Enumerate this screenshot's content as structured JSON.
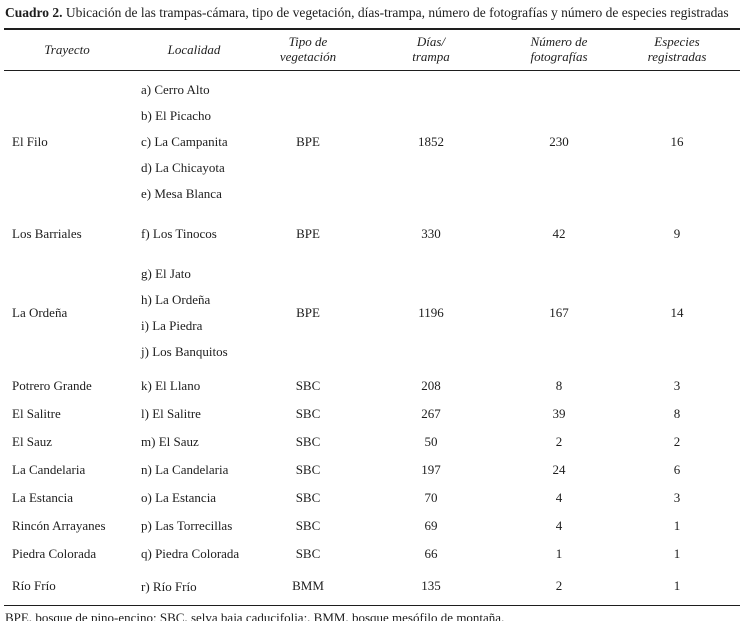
{
  "table": {
    "caption": {
      "label": "Cuadro 2.",
      "text": " Ubicación de las trampas-cámara, tipo de vegetación, días-trampa, número de fotografías y número de especies registradas"
    },
    "columns": [
      "Trayecto",
      "Localidad",
      "Tipo de\nvegetación",
      "Días/\ntrampa",
      "Número de\nfotografías",
      "Especies\nregistradas"
    ],
    "groups": [
      {
        "trayecto": "El Filo",
        "localidades": [
          "a) Cerro Alto",
          "b) El Picacho",
          "c) La Campanita",
          "d) La Chicayota",
          "e) Mesa Blanca"
        ],
        "vegetacion": "BPE",
        "dias_trampa": "1852",
        "num_fotografias": "230",
        "especies_registradas": "16"
      },
      {
        "trayecto": "Los Barriales",
        "localidades": [
          "f) Los Tinocos"
        ],
        "vegetacion": "BPE",
        "dias_trampa": "330",
        "num_fotografias": "42",
        "especies_registradas": "9"
      },
      {
        "trayecto": "La Ordeña",
        "localidades": [
          "g) El Jato",
          "h) La Ordeña",
          "i) La Piedra",
          "j) Los Banquitos"
        ],
        "vegetacion": "BPE",
        "dias_trampa": "1196",
        "num_fotografias": "167",
        "especies_registradas": "14"
      },
      {
        "trayecto": "Potrero Grande",
        "localidades": [
          "k) El Llano"
        ],
        "vegetacion": "SBC",
        "dias_trampa": "208",
        "num_fotografias": "8",
        "especies_registradas": "3"
      },
      {
        "trayecto": "El Salitre",
        "localidades": [
          "l) El Salitre"
        ],
        "vegetacion": "SBC",
        "dias_trampa": "267",
        "num_fotografias": "39",
        "especies_registradas": "8"
      },
      {
        "trayecto": "El Sauz",
        "localidades": [
          "m) El Sauz"
        ],
        "vegetacion": "SBC",
        "dias_trampa": "50",
        "num_fotografias": "2",
        "especies_registradas": "2"
      },
      {
        "trayecto": "La Candelaria",
        "localidades": [
          "n) La Candelaria"
        ],
        "vegetacion": "SBC",
        "dias_trampa": "197",
        "num_fotografias": "24",
        "especies_registradas": "6"
      },
      {
        "trayecto": "La Estancia",
        "localidades": [
          "o) La Estancia"
        ],
        "vegetacion": "SBC",
        "dias_trampa": "70",
        "num_fotografias": "4",
        "especies_registradas": "3"
      },
      {
        "trayecto": "Rincón Arrayanes",
        "localidades": [
          "p) Las Torrecillas"
        ],
        "vegetacion": "SBC",
        "dias_trampa": "69",
        "num_fotografias": "4",
        "especies_registradas": "1"
      },
      {
        "trayecto": "Piedra Colorada",
        "localidades": [
          "q) Piedra Colorada"
        ],
        "vegetacion": "SBC",
        "dias_trampa": "66",
        "num_fotografias": "1",
        "especies_registradas": "1"
      },
      {
        "trayecto": "Río Frío",
        "localidades": [
          "r) Río Frío"
        ],
        "vegetacion": "BMM",
        "dias_trampa": "135",
        "num_fotografias": "2",
        "especies_registradas": "1"
      }
    ],
    "footnote": "BPE, bosque de pino-encino; SBC, selva baja caducifolia;, BMM, bosque mesófilo de montaña.",
    "text_color": "#1d1d1d",
    "background_color": "#ffffff"
  }
}
